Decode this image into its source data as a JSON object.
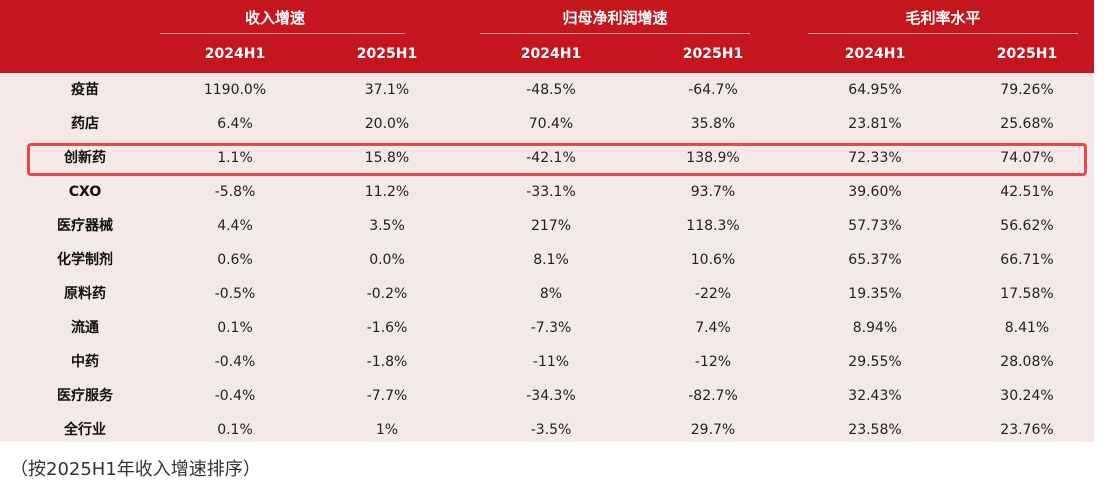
{
  "table": {
    "group_headers": [
      "收入增速",
      "归母净利润增速",
      "毛利率水平"
    ],
    "sub_headers": [
      "2024H1",
      "2025H1",
      "2024H1",
      "2025H1",
      "2024H1",
      "2025H1"
    ],
    "rows": [
      {
        "name": "疫苗",
        "values": [
          "1190.0%",
          "37.1%",
          "-48.5%",
          "-64.7%",
          "64.95%",
          "79.26%"
        ]
      },
      {
        "name": "药店",
        "values": [
          "6.4%",
          "20.0%",
          "70.4%",
          "35.8%",
          "23.81%",
          "25.68%"
        ]
      },
      {
        "name": "创新药",
        "values": [
          "1.1%",
          "15.8%",
          "-42.1%",
          "138.9%",
          "72.33%",
          "74.07%"
        ],
        "highlighted": true
      },
      {
        "name": "CXO",
        "values": [
          "-5.8%",
          "11.2%",
          "-33.1%",
          "93.7%",
          "39.60%",
          "42.51%"
        ]
      },
      {
        "name": "医疗器械",
        "values": [
          "4.4%",
          "3.5%",
          "217%",
          "118.3%",
          "57.73%",
          "56.62%"
        ]
      },
      {
        "name": "化学制剂",
        "values": [
          "0.6%",
          "0.0%",
          "8.1%",
          "10.6%",
          "65.37%",
          "66.71%"
        ]
      },
      {
        "name": "原料药",
        "values": [
          "-0.5%",
          "-0.2%",
          "8%",
          "-22%",
          "19.35%",
          "17.58%"
        ]
      },
      {
        "name": "流通",
        "values": [
          "0.1%",
          "-1.6%",
          "-7.3%",
          "7.4%",
          "8.94%",
          "8.41%"
        ]
      },
      {
        "name": "中药",
        "values": [
          "-0.4%",
          "-1.8%",
          "-11%",
          "-12%",
          "29.55%",
          "28.08%"
        ]
      },
      {
        "name": "医疗服务",
        "values": [
          "-0.4%",
          "-7.7%",
          "-34.3%",
          "-82.7%",
          "32.43%",
          "30.24%"
        ]
      },
      {
        "name": "全行业",
        "values": [
          "0.1%",
          "1%",
          "-3.5%",
          "29.7%",
          "23.58%",
          "23.76%"
        ]
      }
    ]
  },
  "footnote": "（按2025H1年收入增速排序）",
  "colors": {
    "header_bg": "#c5161d",
    "body_bg": "#f5e9e7",
    "highlight_border": "#e8484b"
  }
}
